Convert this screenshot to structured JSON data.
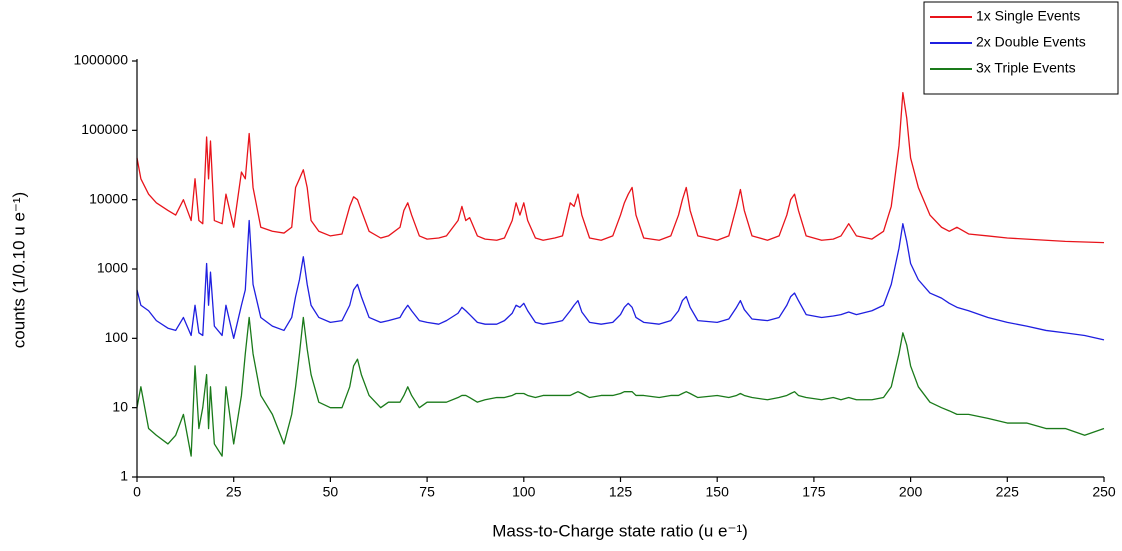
{
  "chart_data": {
    "type": "line",
    "x_label": "Mass-to-Charge state ratio (u e⁻¹)",
    "y_label": "counts (1/0.10 u e⁻¹)",
    "log_y": true,
    "legend": "upper right",
    "xlim": [
      0,
      250
    ],
    "xticks": [
      0,
      25,
      50,
      75,
      100,
      125,
      150,
      175,
      200,
      225,
      250
    ],
    "ylim": [
      1,
      1000000
    ],
    "yticks": [
      1,
      10,
      100,
      1000,
      10000,
      100000,
      1000000
    ],
    "x": [
      0,
      1,
      3,
      5,
      8,
      10,
      12,
      14,
      15,
      16,
      17,
      18,
      18.5,
      19,
      20,
      22,
      23,
      25,
      27,
      28,
      29,
      30,
      32,
      35,
      38,
      40,
      41,
      42,
      43,
      44,
      45,
      47,
      50,
      53,
      55,
      56,
      57,
      58,
      60,
      63,
      65,
      68,
      69,
      70,
      71,
      73,
      75,
      78,
      80,
      83,
      84,
      85,
      86,
      88,
      90,
      93,
      95,
      97,
      98,
      99,
      100,
      101,
      103,
      105,
      108,
      110,
      112,
      113,
      114,
      115,
      117,
      120,
      123,
      125,
      126,
      127,
      128,
      129,
      131,
      135,
      138,
      140,
      141,
      142,
      143,
      145,
      150,
      153,
      155,
      156,
      157,
      159,
      163,
      166,
      168,
      169,
      170,
      171,
      173,
      177,
      180,
      182,
      184,
      186,
      190,
      193,
      195,
      197,
      198,
      199,
      200,
      202,
      205,
      208,
      210,
      212,
      215,
      220,
      225,
      230,
      235,
      240,
      245,
      250
    ],
    "series": [
      {
        "name": "1x Single Events",
        "color": "#e8141b",
        "values": [
          40000,
          20000,
          12000,
          9000,
          7000,
          6000,
          10000,
          5000,
          20000,
          5000,
          4500,
          80000,
          20000,
          70000,
          5000,
          4500,
          12000,
          4000,
          25000,
          20000,
          90000,
          15000,
          4000,
          3500,
          3300,
          4000,
          15000,
          20000,
          27000,
          15000,
          5000,
          3500,
          3000,
          3200,
          8000,
          11000,
          10000,
          7000,
          3500,
          2800,
          3000,
          4000,
          7000,
          9000,
          6000,
          3000,
          2700,
          2800,
          3000,
          5000,
          8000,
          5000,
          5500,
          3000,
          2700,
          2600,
          2800,
          5000,
          9000,
          6000,
          9000,
          5000,
          2800,
          2600,
          2800,
          3000,
          9000,
          8000,
          12000,
          6000,
          2800,
          2600,
          3000,
          6000,
          9000,
          12000,
          15000,
          6000,
          2800,
          2600,
          3000,
          6000,
          10000,
          15000,
          7000,
          3000,
          2600,
          3000,
          8000,
          14000,
          7000,
          3000,
          2600,
          3000,
          6000,
          10000,
          12000,
          7000,
          3000,
          2600,
          2700,
          3000,
          4500,
          3000,
          2700,
          3500,
          8000,
          60000,
          350000,
          150000,
          40000,
          15000,
          6000,
          4000,
          3500,
          4000,
          3200,
          3000,
          2800,
          2700,
          2600,
          2500,
          2450,
          2400
        ]
      },
      {
        "name": "2x Double Events",
        "color": "#1f1fe0",
        "values": [
          500,
          300,
          250,
          180,
          140,
          130,
          200,
          110,
          300,
          120,
          110,
          1200,
          300,
          900,
          150,
          110,
          300,
          100,
          300,
          500,
          5000,
          600,
          200,
          150,
          130,
          200,
          400,
          700,
          1500,
          600,
          300,
          200,
          170,
          180,
          300,
          500,
          600,
          400,
          200,
          170,
          180,
          200,
          250,
          300,
          250,
          180,
          170,
          160,
          180,
          230,
          280,
          250,
          220,
          170,
          160,
          160,
          180,
          230,
          300,
          280,
          320,
          250,
          170,
          160,
          170,
          180,
          250,
          300,
          350,
          240,
          170,
          160,
          170,
          220,
          280,
          320,
          280,
          200,
          170,
          160,
          180,
          250,
          350,
          400,
          280,
          180,
          170,
          190,
          280,
          350,
          260,
          190,
          180,
          200,
          300,
          400,
          450,
          350,
          220,
          200,
          210,
          220,
          240,
          220,
          250,
          300,
          600,
          2000,
          4500,
          2500,
          1200,
          700,
          450,
          380,
          320,
          280,
          250,
          200,
          170,
          150,
          130,
          120,
          110,
          95
        ]
      },
      {
        "name": "3x Triple Events",
        "color": "#1a7a1a",
        "values": [
          10,
          20,
          5,
          4,
          3,
          4,
          8,
          2,
          40,
          5,
          10,
          30,
          5,
          20,
          3,
          2,
          20,
          3,
          15,
          60,
          200,
          60,
          15,
          8,
          3,
          8,
          20,
          60,
          200,
          70,
          30,
          12,
          10,
          10,
          20,
          40,
          50,
          30,
          15,
          10,
          12,
          12,
          15,
          20,
          15,
          10,
          12,
          12,
          12,
          14,
          15,
          15,
          14,
          12,
          13,
          14,
          14,
          15,
          16,
          16,
          16,
          15,
          14,
          15,
          15,
          15,
          15,
          16,
          17,
          16,
          14,
          15,
          15,
          16,
          17,
          17,
          17,
          15,
          15,
          14,
          15,
          15,
          16,
          17,
          16,
          14,
          15,
          14,
          15,
          16,
          15,
          14,
          13,
          14,
          15,
          16,
          17,
          15,
          14,
          13,
          14,
          13,
          14,
          13,
          13,
          14,
          20,
          60,
          120,
          80,
          40,
          20,
          12,
          10,
          9,
          8,
          8,
          7,
          6,
          6,
          5,
          5,
          4,
          5
        ]
      }
    ]
  }
}
